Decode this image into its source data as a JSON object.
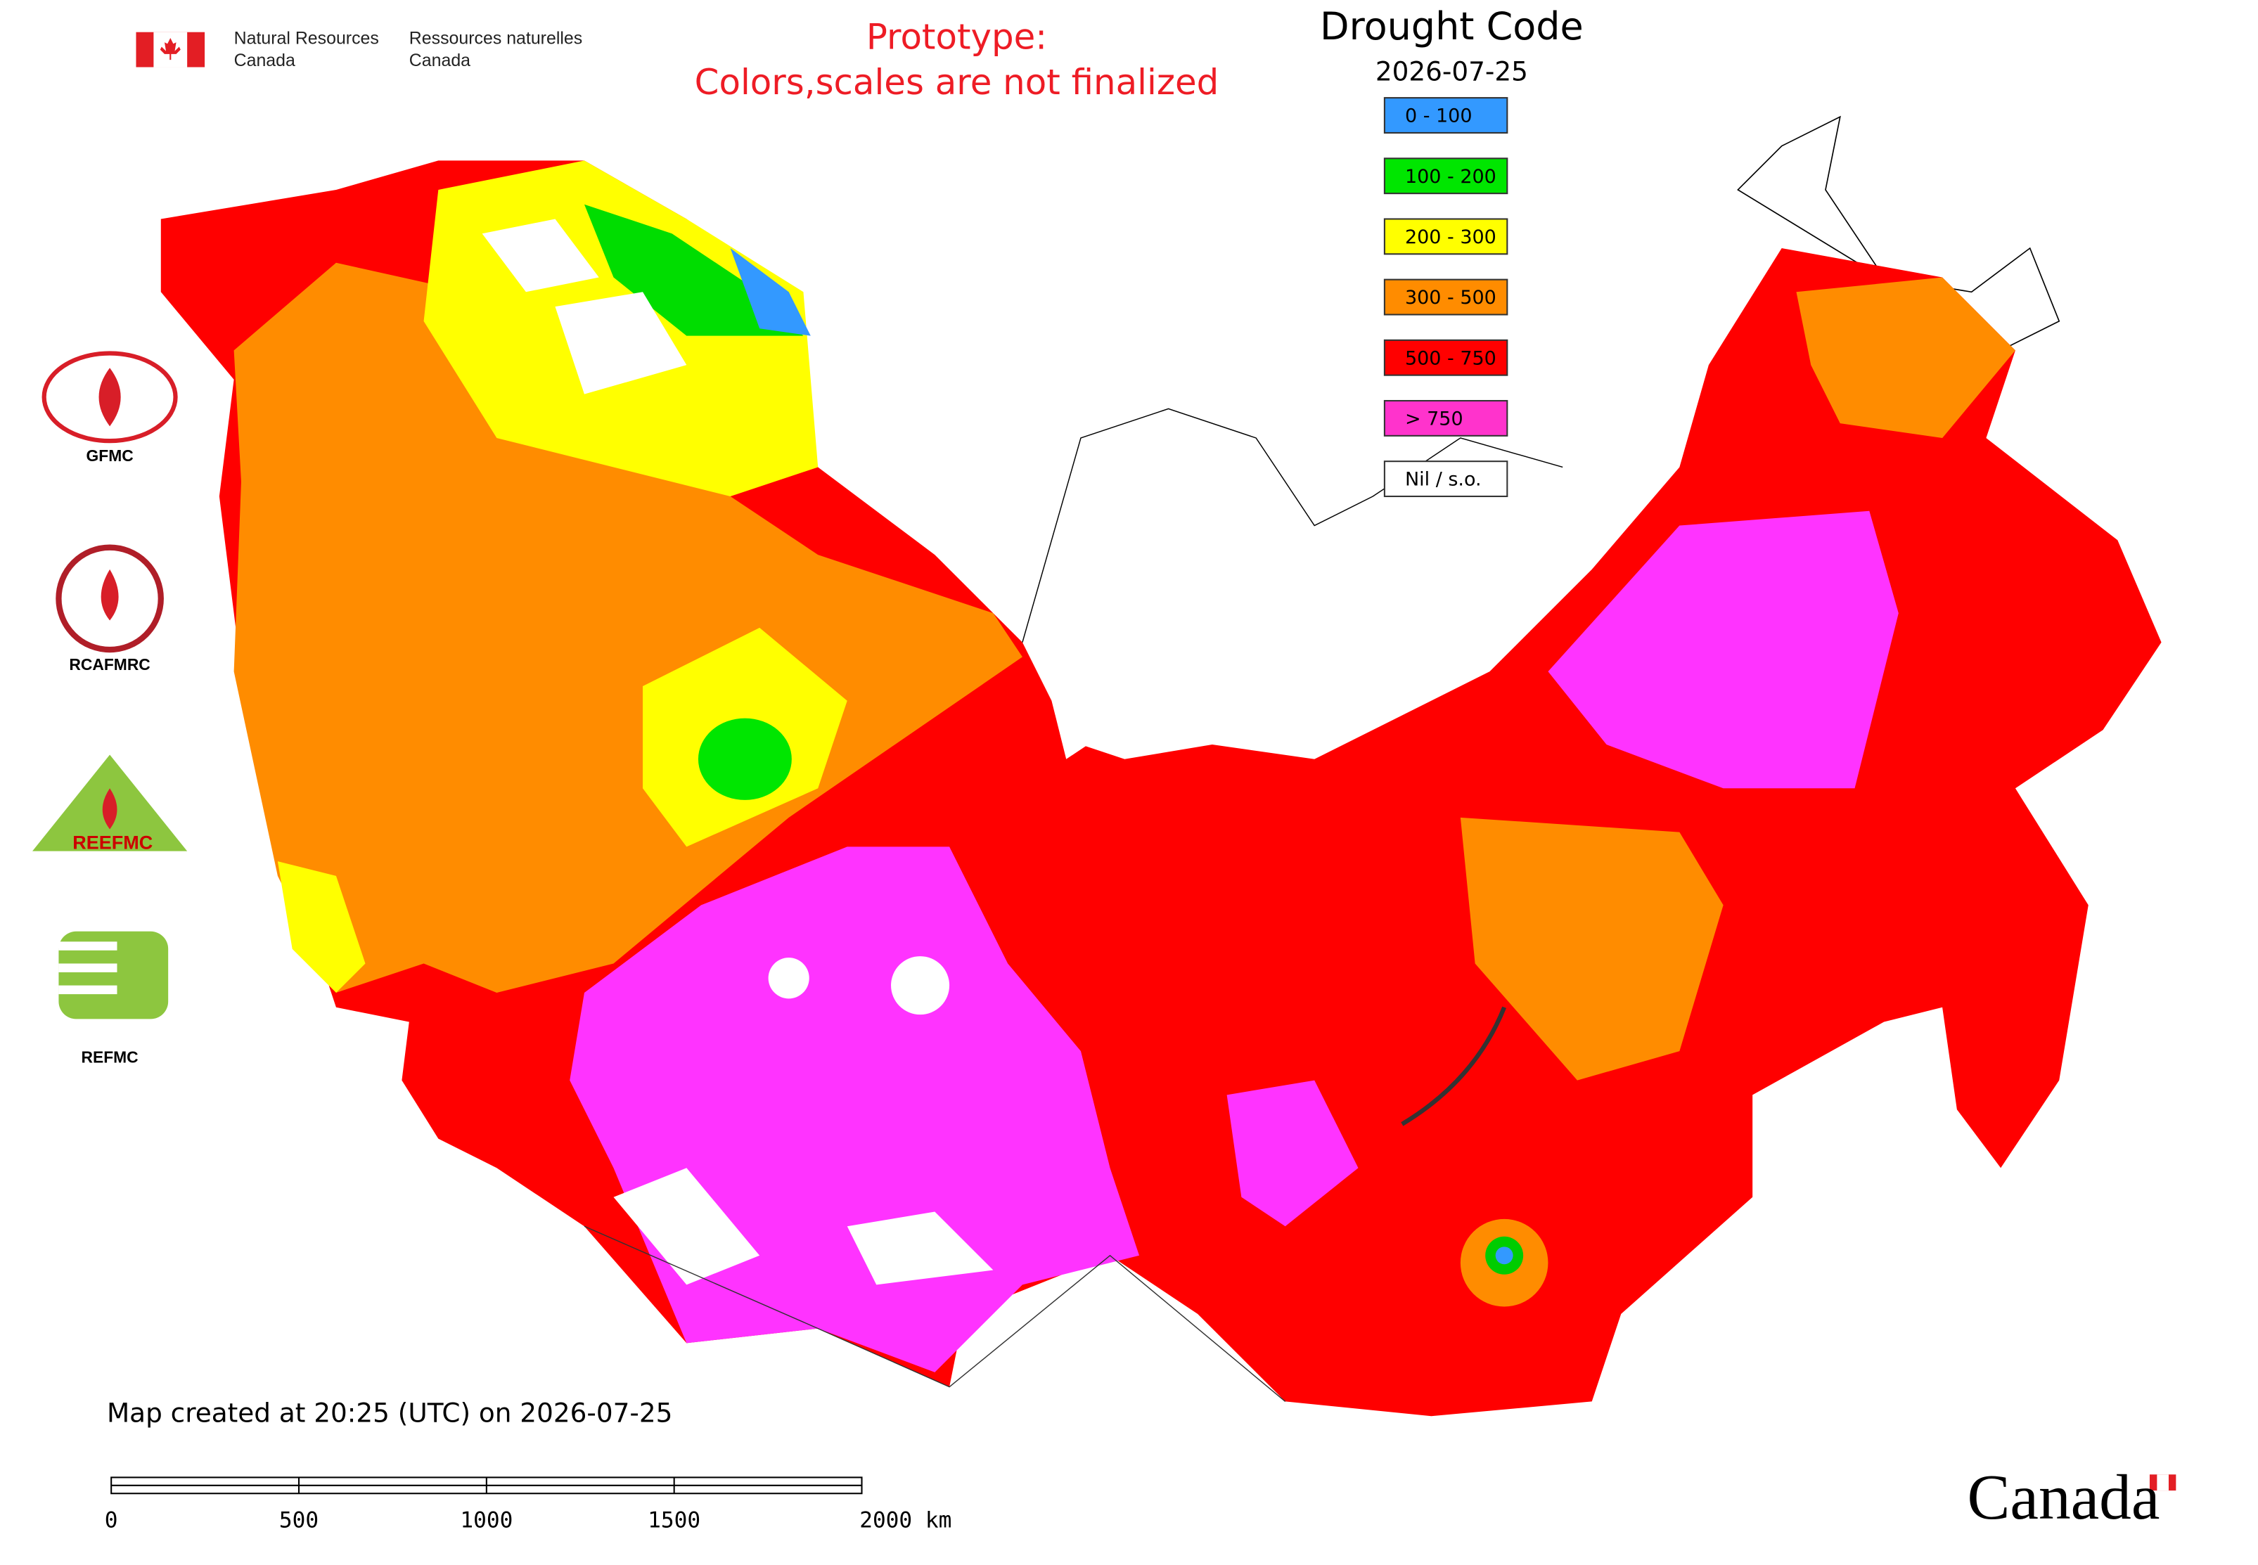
{
  "header": {
    "department_en": [
      "Natural Resources",
      "Canada"
    ],
    "department_fr": [
      "Ressources naturelles",
      "Canada"
    ],
    "notice": [
      "Prototype:",
      "Colors,scales are not finalized"
    ]
  },
  "legend": {
    "title": "Drought Code",
    "date": "2026-07-25",
    "items": [
      {
        "label": "0 - 100",
        "color": "#3399ff"
      },
      {
        "label": "100 - 200",
        "color": "#00e600"
      },
      {
        "label": "200 - 300",
        "color": "#ffff00"
      },
      {
        "label": "300 - 500",
        "color": "#ff8c00"
      },
      {
        "label": "500 - 750",
        "color": "#ff0000"
      },
      {
        "label": "> 750",
        "color": "#ff33cc"
      },
      {
        "label": "Nil / s.o.",
        "color": "#ffffff"
      }
    ]
  },
  "logos": [
    "GFMC",
    "RCAFMRC",
    "REEFMC",
    "REFMC"
  ],
  "footer": {
    "created": "Map created at 20:25 (UTC) on 2026-07-25",
    "scale_labels": [
      "0",
      "500",
      "1000",
      "1500",
      "2000 km"
    ],
    "wordmark": "Canada"
  }
}
